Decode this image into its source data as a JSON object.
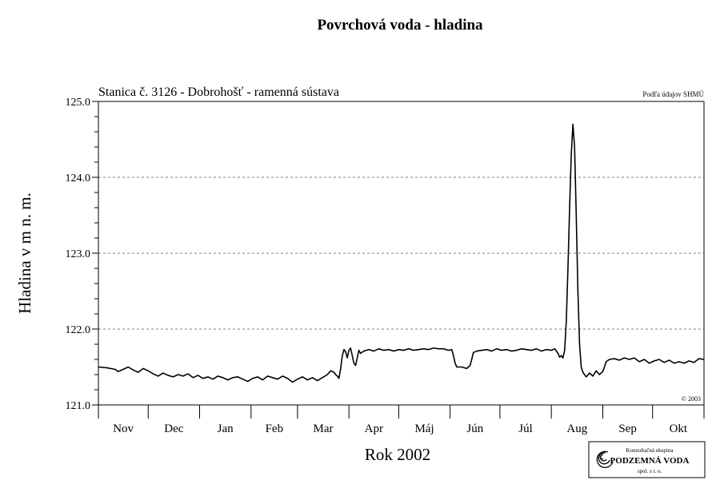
{
  "chart_data": {
    "type": "line",
    "title": "Povrchová voda - hladina",
    "subtitle": "Stanica č. 3126 - Dobrohošť - ramenná sústava",
    "source_note": "Podľa údajov SHMÚ",
    "copyright": "© 2003",
    "xlabel": "Rok 2002",
    "ylabel": "Hladina v m n. m.",
    "ylim": [
      121.0,
      125.0
    ],
    "y_ticks": [
      121.0,
      122.0,
      123.0,
      124.0,
      125.0
    ],
    "y_tick_labels": [
      "121.0",
      "122.0",
      "123.0",
      "124.0",
      "125.0"
    ],
    "y_minor_step": 0.2,
    "grid": "horizontal dashed at major ticks",
    "x_unit": "day",
    "xlim": [
      0,
      365
    ],
    "x_month_starts": [
      0,
      30,
      61,
      92,
      120,
      151,
      181,
      212,
      242,
      273,
      304,
      334,
      365
    ],
    "months": [
      "Nov",
      "Dec",
      "Jan",
      "Feb",
      "Mar",
      "Apr",
      "Máj",
      "Jún",
      "Júl",
      "Aug",
      "Sep",
      "Okt"
    ],
    "series": [
      {
        "name": "",
        "color": "#000000",
        "points": [
          [
            0,
            121.5
          ],
          [
            5,
            121.49
          ],
          [
            10,
            121.47
          ],
          [
            12,
            121.44
          ],
          [
            15,
            121.47
          ],
          [
            18,
            121.5
          ],
          [
            21,
            121.46
          ],
          [
            24,
            121.43
          ],
          [
            27,
            121.48
          ],
          [
            30,
            121.45
          ],
          [
            33,
            121.41
          ],
          [
            36,
            121.38
          ],
          [
            39,
            121.42
          ],
          [
            42,
            121.39
          ],
          [
            45,
            121.37
          ],
          [
            48,
            121.4
          ],
          [
            51,
            121.38
          ],
          [
            54,
            121.41
          ],
          [
            57,
            121.36
          ],
          [
            60,
            121.39
          ],
          [
            63,
            121.35
          ],
          [
            66,
            121.37
          ],
          [
            69,
            121.34
          ],
          [
            72,
            121.38
          ],
          [
            75,
            121.36
          ],
          [
            78,
            121.33
          ],
          [
            81,
            121.36
          ],
          [
            84,
            121.37
          ],
          [
            87,
            121.34
          ],
          [
            90,
            121.31
          ],
          [
            93,
            121.35
          ],
          [
            96,
            121.37
          ],
          [
            99,
            121.33
          ],
          [
            102,
            121.38
          ],
          [
            105,
            121.36
          ],
          [
            108,
            121.34
          ],
          [
            111,
            121.38
          ],
          [
            114,
            121.35
          ],
          [
            117,
            121.3
          ],
          [
            120,
            121.34
          ],
          [
            123,
            121.37
          ],
          [
            126,
            121.33
          ],
          [
            129,
            121.36
          ],
          [
            132,
            121.32
          ],
          [
            135,
            121.36
          ],
          [
            138,
            121.4
          ],
          [
            140,
            121.45
          ],
          [
            142,
            121.43
          ],
          [
            143,
            121.4
          ],
          [
            144,
            121.38
          ],
          [
            145,
            121.35
          ],
          [
            146,
            121.48
          ],
          [
            147,
            121.65
          ],
          [
            148,
            121.73
          ],
          [
            149,
            121.7
          ],
          [
            150,
            121.62
          ],
          [
            151,
            121.72
          ],
          [
            152,
            121.75
          ],
          [
            153,
            121.65
          ],
          [
            154,
            121.55
          ],
          [
            155,
            121.52
          ],
          [
            156,
            121.62
          ],
          [
            157,
            121.72
          ],
          [
            158,
            121.68
          ],
          [
            160,
            121.71
          ],
          [
            163,
            121.73
          ],
          [
            166,
            121.71
          ],
          [
            169,
            121.74
          ],
          [
            172,
            121.72
          ],
          [
            175,
            121.73
          ],
          [
            178,
            121.71
          ],
          [
            181,
            121.73
          ],
          [
            184,
            121.72
          ],
          [
            187,
            121.74
          ],
          [
            190,
            121.72
          ],
          [
            193,
            121.73
          ],
          [
            196,
            121.74
          ],
          [
            199,
            121.73
          ],
          [
            202,
            121.75
          ],
          [
            205,
            121.74
          ],
          [
            208,
            121.74
          ],
          [
            211,
            121.72
          ],
          [
            213,
            121.73
          ],
          [
            214,
            121.65
          ],
          [
            215,
            121.55
          ],
          [
            216,
            121.5
          ],
          [
            219,
            121.5
          ],
          [
            222,
            121.48
          ],
          [
            224,
            121.52
          ],
          [
            225,
            121.6
          ],
          [
            226,
            121.69
          ],
          [
            228,
            121.71
          ],
          [
            231,
            121.72
          ],
          [
            234,
            121.73
          ],
          [
            237,
            121.71
          ],
          [
            240,
            121.74
          ],
          [
            243,
            121.72
          ],
          [
            246,
            121.73
          ],
          [
            249,
            121.71
          ],
          [
            252,
            121.72
          ],
          [
            255,
            121.74
          ],
          [
            258,
            121.73
          ],
          [
            261,
            121.72
          ],
          [
            264,
            121.74
          ],
          [
            267,
            121.71
          ],
          [
            270,
            121.73
          ],
          [
            273,
            121.72
          ],
          [
            275,
            121.74
          ],
          [
            277,
            121.68
          ],
          [
            278,
            121.63
          ],
          [
            279,
            121.65
          ],
          [
            280,
            121.62
          ],
          [
            281,
            121.72
          ],
          [
            282,
            122.1
          ],
          [
            283,
            122.8
          ],
          [
            284,
            123.6
          ],
          [
            285,
            124.3
          ],
          [
            286,
            124.7
          ],
          [
            287,
            124.4
          ],
          [
            288,
            123.5
          ],
          [
            289,
            122.5
          ],
          [
            290,
            121.8
          ],
          [
            291,
            121.5
          ],
          [
            292,
            121.43
          ],
          [
            293,
            121.4
          ],
          [
            294,
            121.37
          ],
          [
            296,
            121.42
          ],
          [
            298,
            121.38
          ],
          [
            300,
            121.45
          ],
          [
            302,
            121.4
          ],
          [
            304,
            121.44
          ],
          [
            305,
            121.5
          ],
          [
            306,
            121.57
          ],
          [
            308,
            121.6
          ],
          [
            311,
            121.61
          ],
          [
            314,
            121.59
          ],
          [
            317,
            121.62
          ],
          [
            320,
            121.6
          ],
          [
            323,
            121.62
          ],
          [
            326,
            121.57
          ],
          [
            329,
            121.6
          ],
          [
            332,
            121.55
          ],
          [
            335,
            121.58
          ],
          [
            338,
            121.6
          ],
          [
            341,
            121.56
          ],
          [
            344,
            121.59
          ],
          [
            347,
            121.55
          ],
          [
            350,
            121.57
          ],
          [
            353,
            121.55
          ],
          [
            356,
            121.58
          ],
          [
            359,
            121.56
          ],
          [
            362,
            121.61
          ],
          [
            365,
            121.6
          ]
        ]
      }
    ]
  },
  "logo": {
    "line1": "Konzultačná skupina",
    "line2": "PODZEMNÁ VODA",
    "line3": "spol. s r. o."
  }
}
